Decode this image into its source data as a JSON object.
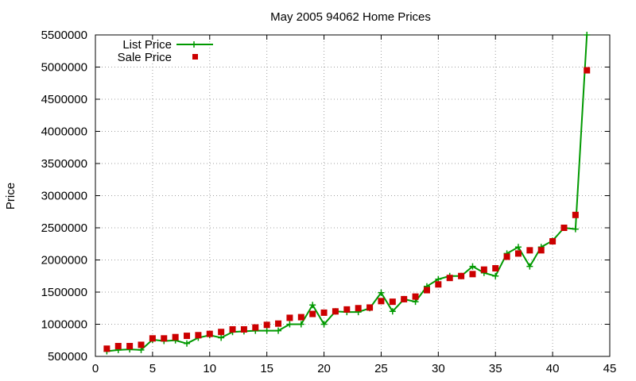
{
  "chart_data": {
    "type": "line",
    "title": "May 2005 94062 Home Prices",
    "xlabel": "",
    "ylabel": "Price",
    "xlim": [
      0,
      45
    ],
    "ylim": [
      500000,
      5500000
    ],
    "xticks": [
      0,
      5,
      10,
      15,
      20,
      25,
      30,
      35,
      40,
      45
    ],
    "yticks": [
      500000,
      1000000,
      1500000,
      2000000,
      2500000,
      3000000,
      3500000,
      4000000,
      4500000,
      5000000,
      5500000
    ],
    "grid": true,
    "legend_position": "top-left",
    "x": [
      1,
      2,
      3,
      4,
      5,
      6,
      7,
      8,
      9,
      10,
      11,
      12,
      13,
      14,
      15,
      16,
      17,
      18,
      19,
      20,
      21,
      22,
      23,
      24,
      25,
      26,
      27,
      28,
      29,
      30,
      31,
      32,
      33,
      34,
      35,
      36,
      37,
      38,
      39,
      40,
      41,
      42,
      43
    ],
    "series": [
      {
        "name": "List Price",
        "style": "line+cross",
        "color": "#009900",
        "values": [
          580000,
          600000,
          610000,
          600000,
          760000,
          740000,
          750000,
          700000,
          790000,
          830000,
          790000,
          880000,
          890000,
          900000,
          900000,
          900000,
          1000000,
          1000000,
          1300000,
          1000000,
          1200000,
          1190000,
          1190000,
          1250000,
          1490000,
          1200000,
          1390000,
          1350000,
          1590000,
          1700000,
          1750000,
          1750000,
          1900000,
          1800000,
          1750000,
          2100000,
          2200000,
          1900000,
          2200000,
          2300000,
          2500000,
          2480000,
          5500000
        ]
      },
      {
        "name": "Sale Price",
        "style": "square",
        "color": "#cc0000",
        "values": [
          620000,
          660000,
          660000,
          680000,
          780000,
          780000,
          800000,
          820000,
          830000,
          850000,
          880000,
          920000,
          920000,
          950000,
          990000,
          1010000,
          1100000,
          1110000,
          1160000,
          1180000,
          1200000,
          1230000,
          1250000,
          1260000,
          1360000,
          1350000,
          1390000,
          1430000,
          1530000,
          1620000,
          1720000,
          1750000,
          1780000,
          1850000,
          1870000,
          2050000,
          2100000,
          2150000,
          2150000,
          2290000,
          2500000,
          2700000,
          4950000
        ]
      }
    ]
  }
}
